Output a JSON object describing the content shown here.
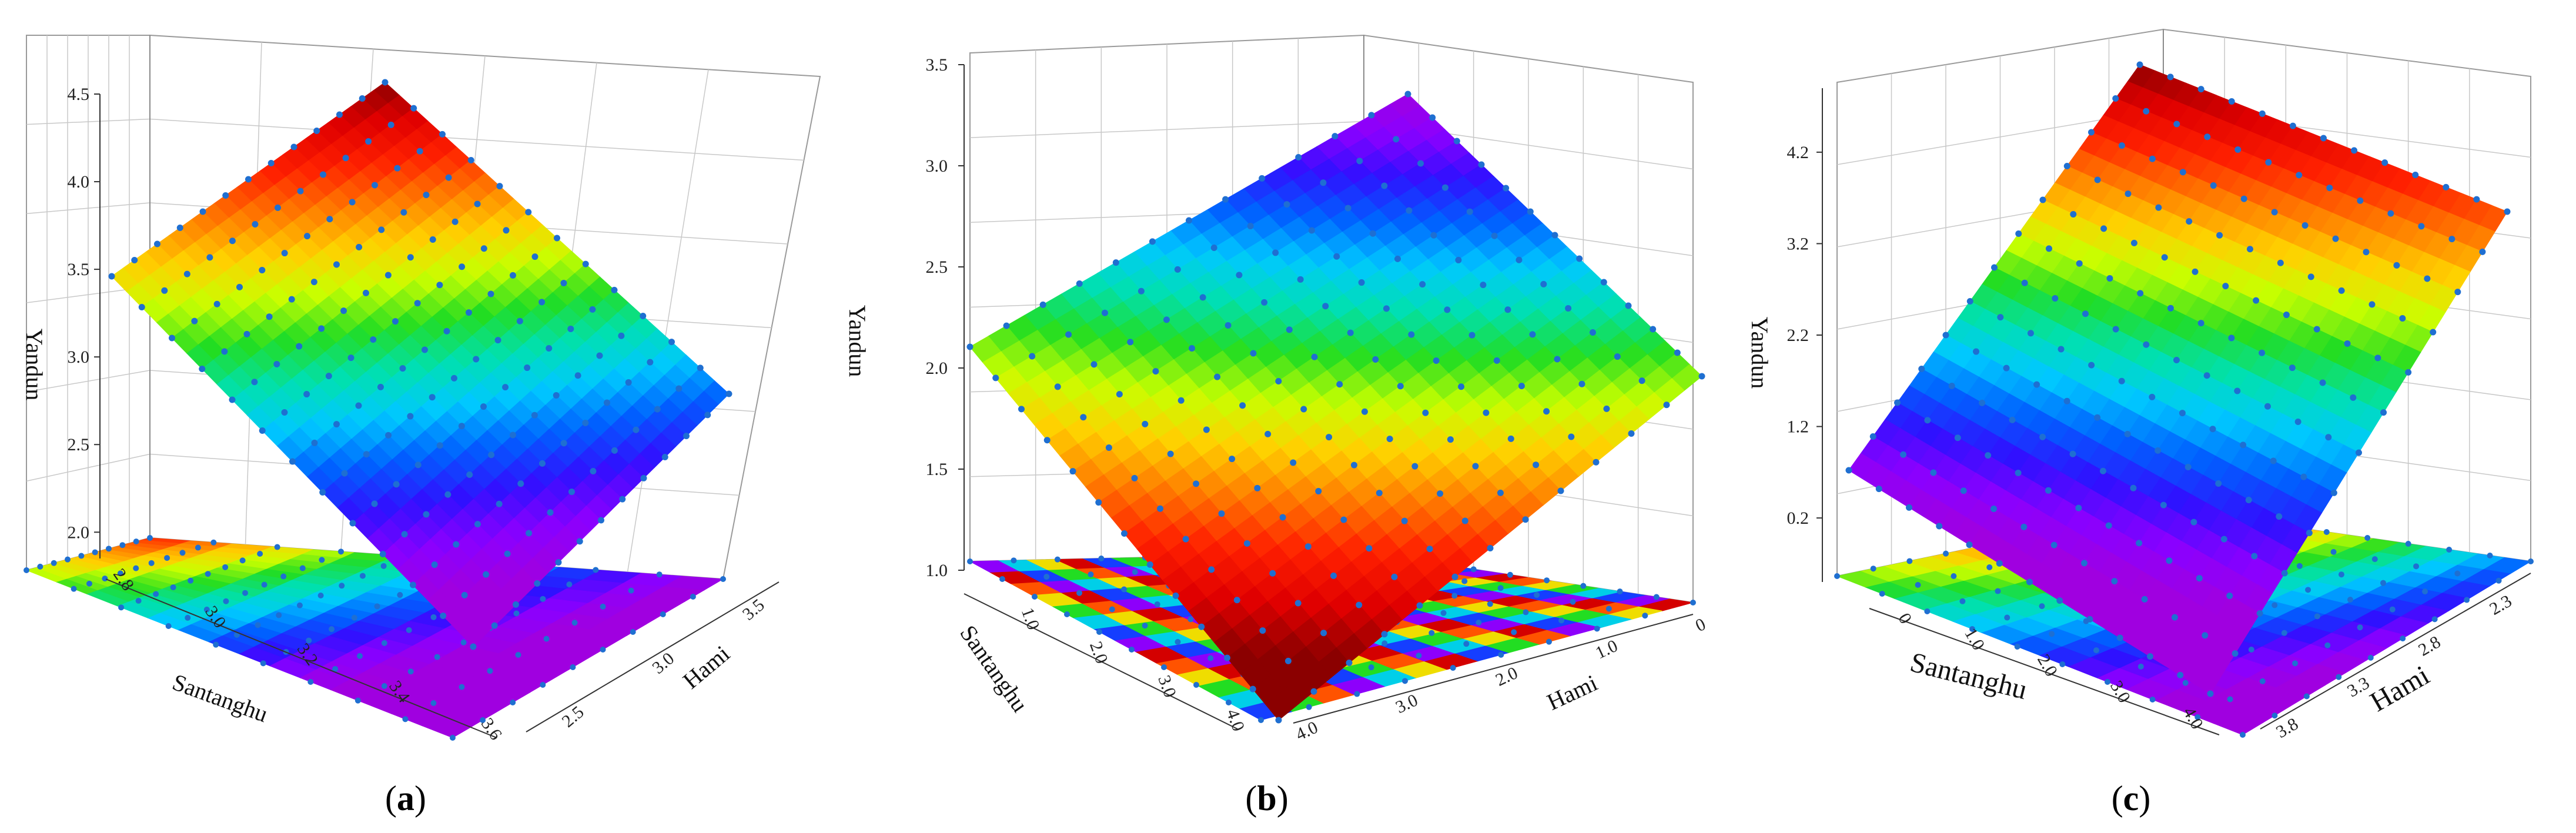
{
  "figure": {
    "panels": [
      {
        "label_open": "(",
        "label_letter": "a",
        "label_close": ")"
      },
      {
        "label_open": "(",
        "label_letter": "b",
        "label_close": ")"
      },
      {
        "label_open": "(",
        "label_letter": "c",
        "label_close": ")"
      }
    ]
  },
  "chart_data": [
    {
      "type": "surface3d",
      "xlabel": "Santanghu",
      "ylabel": "Hami",
      "zlabel": "Yandun",
      "x_ticks": [
        "2.8",
        "3.0",
        "3.2",
        "3.4",
        "3.6"
      ],
      "y_ticks": [
        "2.5",
        "3.0",
        "3.5"
      ],
      "z_ticks": [
        "2.0",
        "2.5",
        "3.0",
        "3.5",
        "4.0",
        "4.5"
      ],
      "xlim": [
        2.75,
        3.6
      ],
      "ylim": [
        2.3,
        3.7
      ],
      "zlim": [
        1.85,
        4.5
      ],
      "surface_corners_z": {
        "back": 4.4,
        "left": 3.5,
        "right": 3.0,
        "front": 1.8
      },
      "colormap": "rainbow",
      "grid": true,
      "sample_points": true,
      "floor_contour": true
    },
    {
      "type": "surface3d",
      "xlabel": "Santanghu",
      "ylabel": "Hami",
      "zlabel": "Yandun",
      "x_ticks": [
        "1.0",
        "2.0",
        "3.0",
        "4.0"
      ],
      "y_ticks": [
        "0",
        "1.0",
        "2.0",
        "3.0",
        "4.0"
      ],
      "z_ticks": [
        "1.0",
        "1.5",
        "2.0",
        "2.5",
        "3.0",
        "3.5"
      ],
      "xlim": [
        0,
        4.0
      ],
      "ylim": [
        0,
        4.0
      ],
      "zlim": [
        1.0,
        3.5
      ],
      "surface_corners_z": {
        "back": 3.3,
        "left": 2.1,
        "right": 2.05,
        "front": 1.0
      },
      "colormap": "rainbow",
      "grid": true,
      "sample_points": true,
      "floor_contour": true
    },
    {
      "type": "surface3d",
      "xlabel": "Santanghu",
      "ylabel": "Hami",
      "zlabel": "Yandun",
      "x_ticks": [
        "0",
        "1.0",
        "2.0",
        "3.0",
        "4.0"
      ],
      "y_ticks": [
        "2.3",
        "2.8",
        "3.3",
        "3.8"
      ],
      "z_ticks": [
        "0.2",
        "1.2",
        "2.2",
        "3.2",
        "4.2"
      ],
      "xlim": [
        -0.5,
        4.3
      ],
      "ylim": [
        2.0,
        3.9
      ],
      "zlim": [
        -0.5,
        4.9
      ],
      "surface_corners_z": {
        "back": 4.7,
        "left": 0.5,
        "right": 3.9,
        "front": -0.5
      },
      "colormap": "rainbow",
      "grid": true,
      "sample_points": true,
      "floor_contour": true
    }
  ]
}
